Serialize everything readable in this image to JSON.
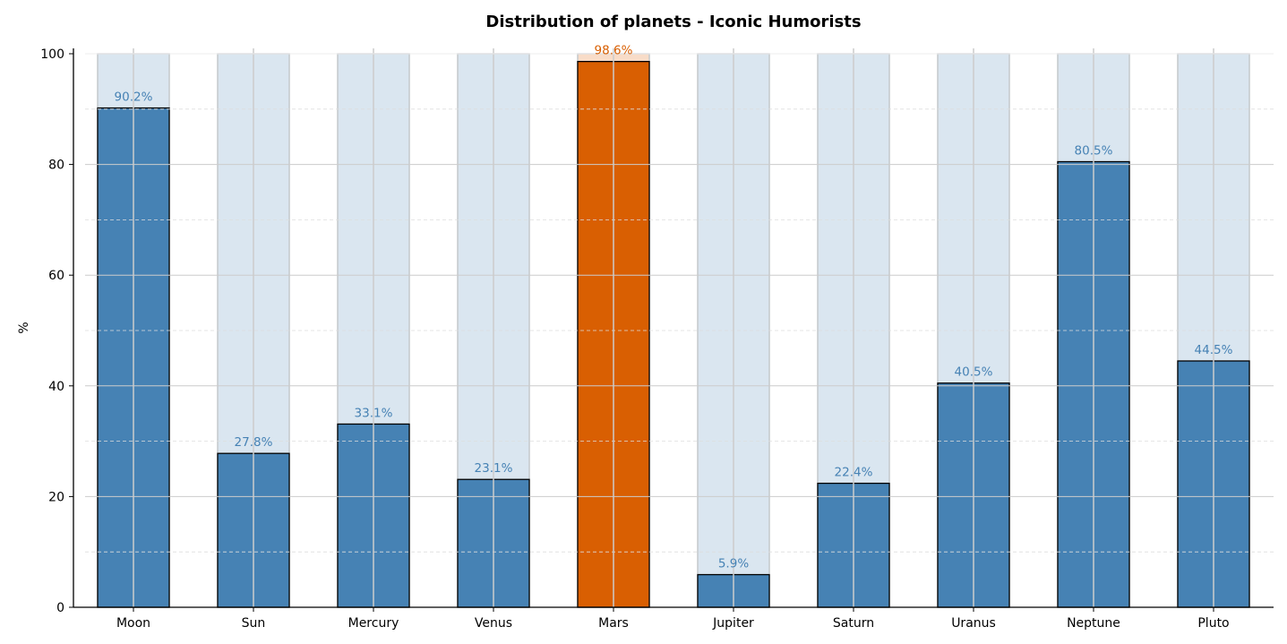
{
  "chart_data": {
    "type": "bar",
    "title": "Distribution of planets - Iconic Humorists",
    "xlabel": "",
    "ylabel": "%",
    "ylim": [
      0,
      100
    ],
    "yticks": [
      "0",
      "20",
      "40",
      "60",
      "80",
      "100"
    ],
    "grid": true,
    "categories": [
      "Moon",
      "Sun",
      "Mercury",
      "Venus",
      "Mars",
      "Jupiter",
      "Saturn",
      "Uranus",
      "Neptune",
      "Pluto"
    ],
    "values": [
      90.2,
      27.8,
      33.1,
      23.1,
      98.6,
      5.9,
      22.4,
      40.5,
      80.5,
      44.5
    ],
    "labels": [
      "90.2%",
      "27.8%",
      "33.1%",
      "23.1%",
      "98.6%",
      "5.9%",
      "22.4%",
      "40.5%",
      "80.5%",
      "44.5%"
    ],
    "background_value": 100,
    "highlight_index": 4,
    "colors": {
      "bar": "#4682b4",
      "highlight": "#d95f02",
      "background_bar": "#dae6f0",
      "highlight_background": "#f8dcc8"
    }
  }
}
